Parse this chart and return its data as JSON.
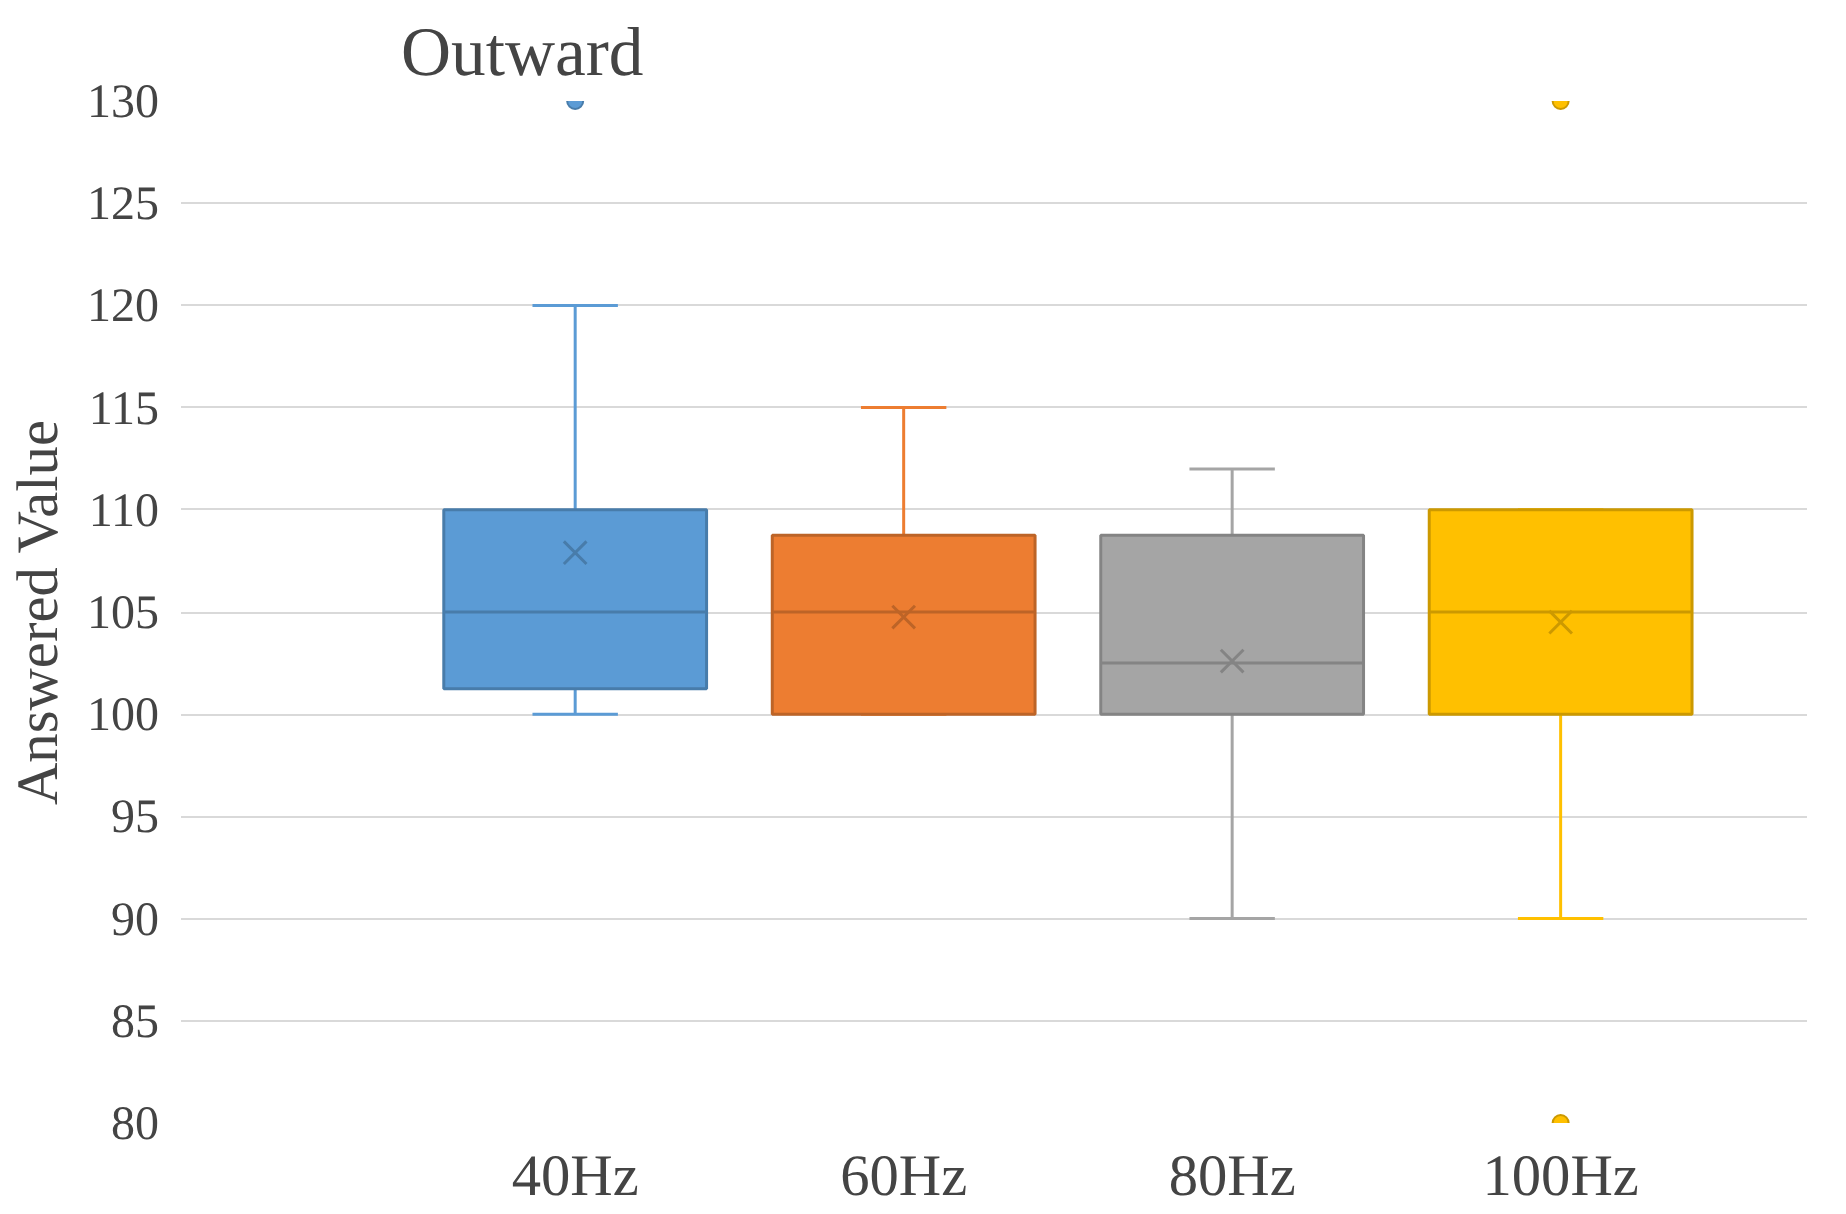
{
  "chart_data": {
    "type": "box",
    "title": "Outward",
    "ylabel": "Answered Value",
    "categories": [
      "40Hz",
      "60Hz",
      "80Hz",
      "100Hz"
    ],
    "colors": [
      "#5b9bd5",
      "#ed7d31",
      "#a5a5a5",
      "#ffc000"
    ],
    "boxes": [
      {
        "low": 100,
        "q1": 101.25,
        "median": 105,
        "q3": 110,
        "high": 120,
        "mean": 107.9,
        "outliers": [
          130
        ]
      },
      {
        "low": 100,
        "q1": 100,
        "median": 105,
        "q3": 108.75,
        "high": 115,
        "mean": 104.75
      },
      {
        "low": 90,
        "q1": 100,
        "median": 102.5,
        "q3": 108.75,
        "high": 112,
        "mean": 102.6
      },
      {
        "low": 90,
        "q1": 100,
        "median": 105,
        "q3": 110,
        "high": 110,
        "mean": 104.5,
        "outliers": [
          130,
          80
        ]
      }
    ],
    "ylim": [
      80,
      130
    ],
    "yticks": [
      80,
      85,
      90,
      95,
      100,
      105,
      110,
      115,
      120,
      125,
      130
    ],
    "grid": "y",
    "marker": "cross"
  }
}
